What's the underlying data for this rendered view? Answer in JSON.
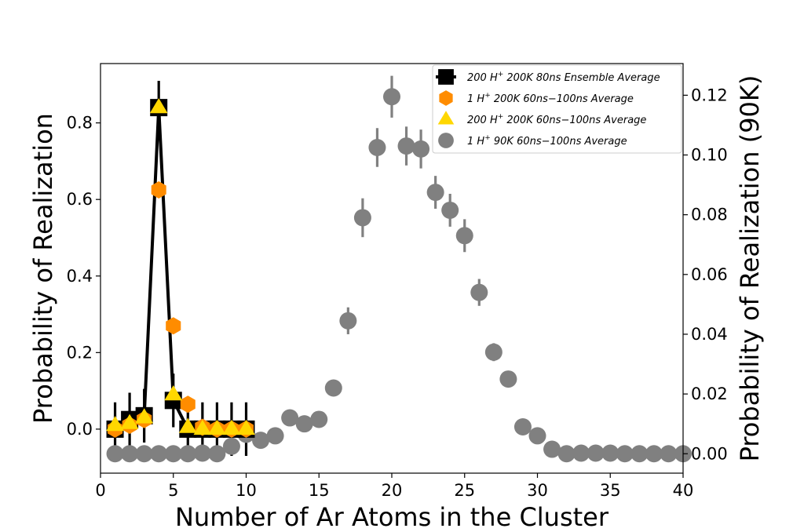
{
  "chart_data": {
    "type": "scatter",
    "xlabel": "Number of Ar Atoms in the Cluster",
    "ylabel": "Probability of Realization",
    "ylabel_right": "Probability of Realization (90K)",
    "xlim": [
      0,
      40
    ],
    "ylim_left": [
      -0.115,
      0.955
    ],
    "ylim_right": [
      -0.0065,
      0.1306
    ],
    "x_ticks": [
      "0",
      "5",
      "10",
      "15",
      "20",
      "25",
      "30",
      "35",
      "40"
    ],
    "y_ticks_left": [
      "0.0",
      "0.2",
      "0.4",
      "0.6",
      "0.8"
    ],
    "y_ticks_right": [
      "0.00",
      "0.02",
      "0.04",
      "0.06",
      "0.08",
      "0.10",
      "0.12"
    ],
    "grid": false,
    "legend_position": "top-right",
    "series": [
      {
        "name": "200 H+ 200K 80ns Ensemble Average",
        "axis": "left",
        "marker": "square",
        "line": true,
        "color": "#000000",
        "x": [
          1,
          2,
          3,
          4,
          5,
          6,
          7,
          8,
          9,
          10
        ],
        "y": [
          0.0,
          0.025,
          0.035,
          0.84,
          0.075,
          0.0,
          0.0,
          0.0,
          0.0,
          0.0
        ],
        "err": [
          0.07,
          0.07,
          0.07,
          0.07,
          0.07,
          0.07,
          0.07,
          0.07,
          0.07,
          0.07
        ]
      },
      {
        "name": "1 H+ 200K 60ns-100ns Average",
        "axis": "left",
        "marker": "hexagon",
        "line": false,
        "color": "#ff8c00",
        "x": [
          1,
          2,
          3,
          4,
          5,
          6,
          7,
          8,
          9,
          10
        ],
        "y": [
          0.0,
          0.01,
          0.025,
          0.625,
          0.27,
          0.065,
          0.005,
          0.0,
          0.0,
          0.0
        ]
      },
      {
        "name": "200 H+ 200K 60ns-100ns Average",
        "axis": "left",
        "marker": "triangle",
        "line": false,
        "color": "#ffd700",
        "x": [
          1,
          2,
          3,
          4,
          5,
          6,
          7,
          8,
          9,
          10
        ],
        "y": [
          0.01,
          0.015,
          0.03,
          0.84,
          0.09,
          0.005,
          0.0,
          0.0,
          0.0,
          0.0
        ]
      },
      {
        "name": "1 H+ 90K 60ns-100ns Average",
        "axis": "right",
        "marker": "circle",
        "line": false,
        "color": "#808080",
        "x": [
          1,
          2,
          3,
          4,
          5,
          6,
          7,
          8,
          9,
          10,
          11,
          12,
          13,
          14,
          15,
          16,
          17,
          18,
          19,
          20,
          21,
          22,
          23,
          24,
          25,
          26,
          27,
          28,
          29,
          30,
          31,
          32,
          33,
          34,
          35,
          36,
          37,
          38,
          39,
          40
        ],
        "y": [
          0.0,
          0.0,
          0.0,
          0.0,
          0.0,
          0.0,
          0.0002,
          0.0,
          0.0025,
          0.0065,
          0.0045,
          0.006,
          0.012,
          0.01,
          0.0115,
          0.022,
          0.0445,
          0.079,
          0.1025,
          0.1195,
          0.103,
          0.102,
          0.0875,
          0.0815,
          0.073,
          0.054,
          0.034,
          0.025,
          0.009,
          0.006,
          0.0015,
          0.0,
          0.0002,
          0.0002,
          0.0002,
          0.0,
          0.0,
          0.0,
          0.0,
          0.0
        ],
        "err": [
          0,
          0,
          0,
          0,
          0,
          0,
          0,
          0,
          0,
          0,
          0,
          0,
          0,
          0,
          0,
          0.001,
          0.0045,
          0.0065,
          0.0065,
          0.007,
          0.0065,
          0.0065,
          0.0055,
          0.0055,
          0.0055,
          0.0045,
          0.003,
          0.002,
          0,
          0,
          0,
          0,
          0,
          0,
          0,
          0,
          0,
          0,
          0,
          0
        ]
      }
    ],
    "legend": [
      {
        "marker": "square",
        "color": "#000000",
        "parts": [
          "200 ",
          "H",
          "+",
          " 200K 80ns Ensemble Average"
        ]
      },
      {
        "marker": "hexagon",
        "color": "#ff8c00",
        "parts": [
          "1 ",
          "H",
          "+",
          " 200K 60ns−100ns Average"
        ]
      },
      {
        "marker": "triangle",
        "color": "#ffd700",
        "parts": [
          "200 ",
          "H",
          "+",
          " 200K 60ns−100ns Average"
        ]
      },
      {
        "marker": "circle",
        "color": "#808080",
        "parts": [
          "1 ",
          "H",
          "+",
          " 90K 60ns−100ns Average"
        ]
      }
    ]
  }
}
